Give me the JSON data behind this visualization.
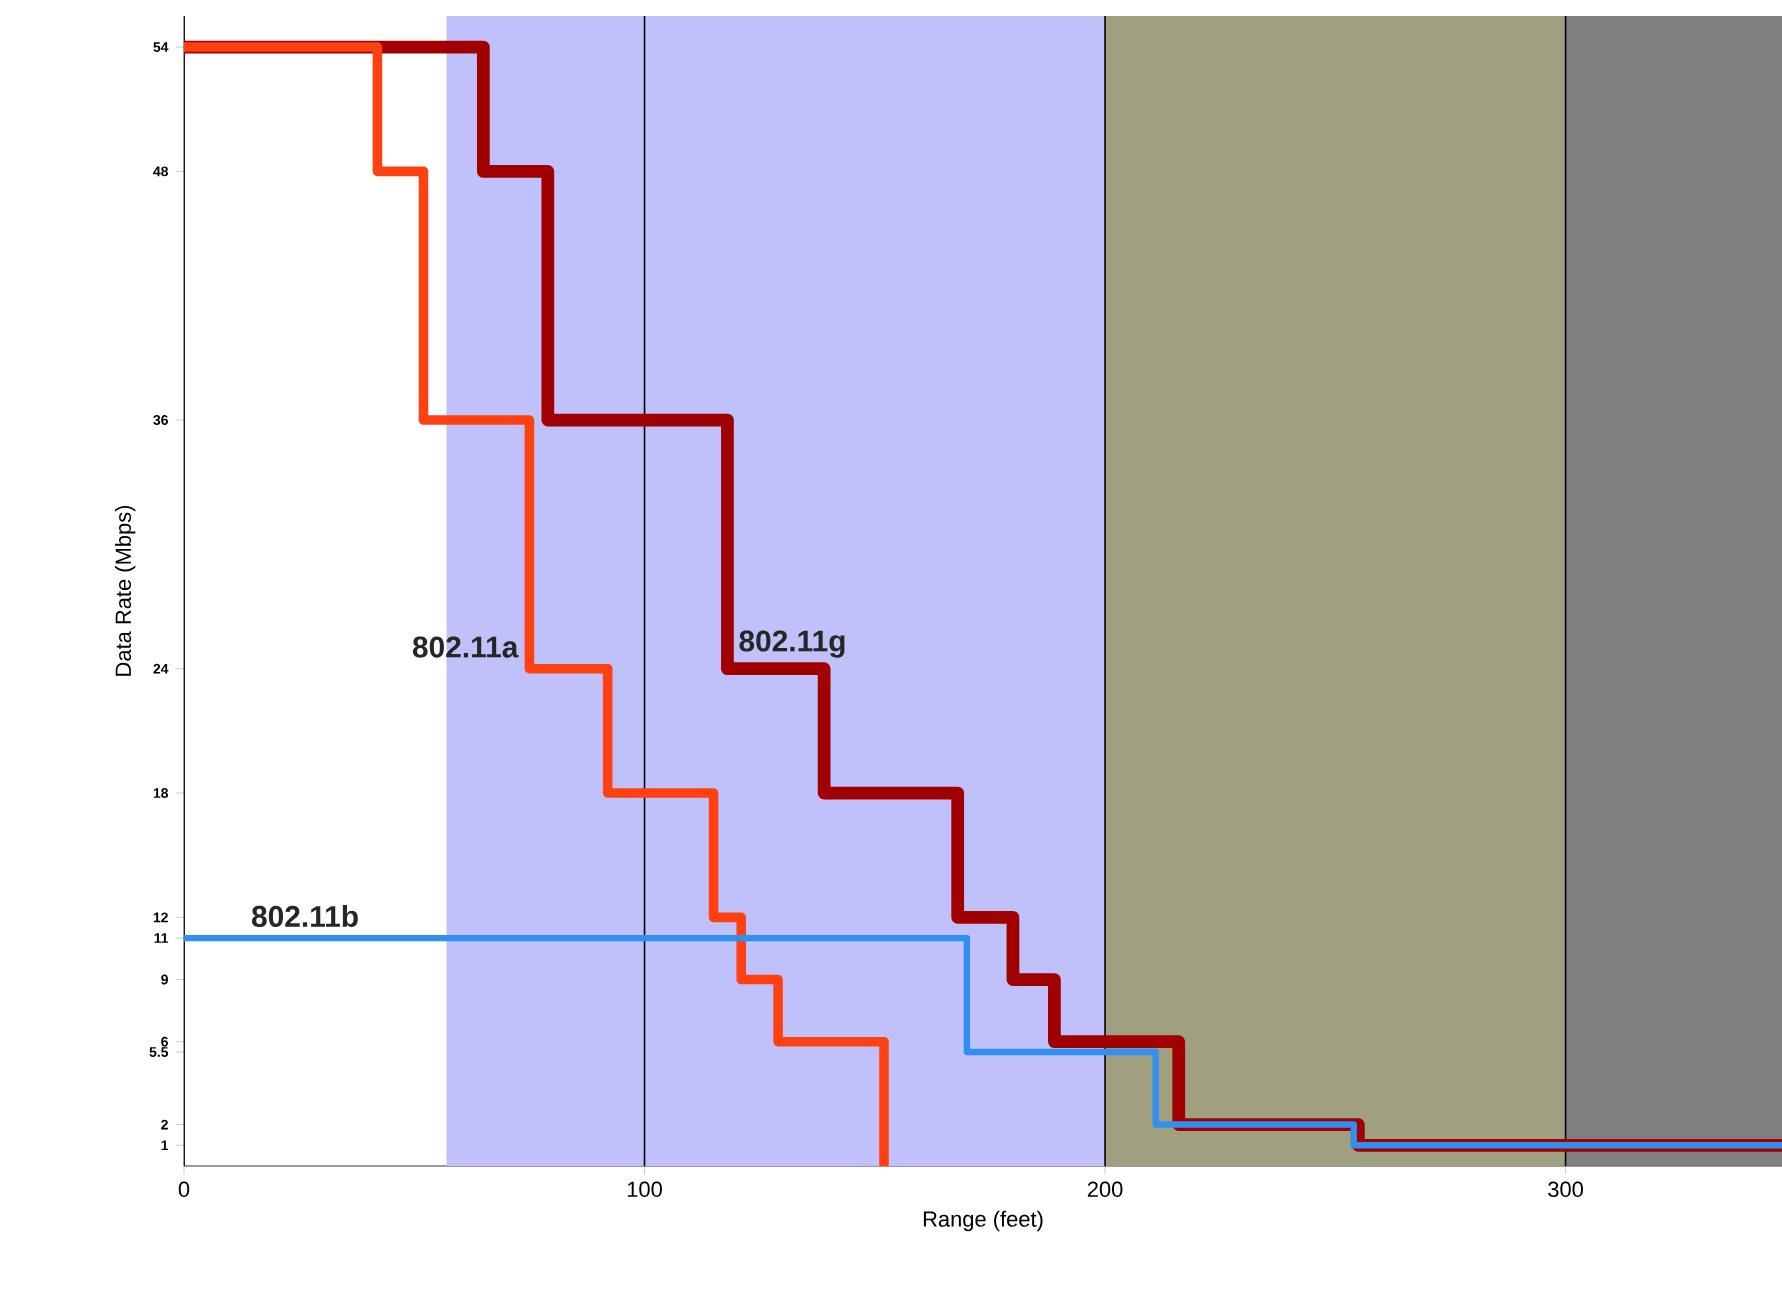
{
  "chart_data": {
    "type": "step",
    "xlabel": "Range (feet)",
    "ylabel": "Data Rate (Mbps)",
    "xlim": [
      0,
      347
    ],
    "ylim": [
      0,
      55.5
    ],
    "xticks": [
      0,
      100,
      200,
      300
    ],
    "yticks": [
      1,
      2,
      5.5,
      6,
      9,
      11,
      12,
      18,
      24,
      36,
      48,
      54
    ],
    "grid": "x",
    "legend": false,
    "marker": "none",
    "line_style": "solid",
    "bands": [
      {
        "axis": "x",
        "from": 57,
        "to": 200,
        "color": "#c0c0fa"
      },
      {
        "axis": "x",
        "from": 200,
        "to": 300,
        "color": "#a09f80"
      },
      {
        "axis": "x",
        "from": 300,
        "to": 347,
        "color": "#808080"
      }
    ],
    "series": [
      {
        "name": "802.11g",
        "color": "#a00000",
        "x": [
          0,
          65,
          79,
          118,
          139,
          168,
          180,
          189,
          216,
          255,
          347
        ],
        "values": [
          54,
          48,
          36,
          24,
          18,
          12,
          9,
          6,
          2,
          1,
          1
        ]
      },
      {
        "name": "802.11a",
        "color": "#ff4010",
        "x": [
          0,
          42,
          52,
          75,
          92,
          115,
          121,
          129,
          152
        ],
        "values": [
          54,
          48,
          36,
          24,
          18,
          12,
          9,
          6,
          0
        ]
      },
      {
        "name": "802.11b",
        "color": "#3090f0",
        "x": [
          0,
          170,
          211,
          254,
          347
        ],
        "values": [
          11,
          5.5,
          2,
          1,
          1
        ]
      }
    ]
  }
}
